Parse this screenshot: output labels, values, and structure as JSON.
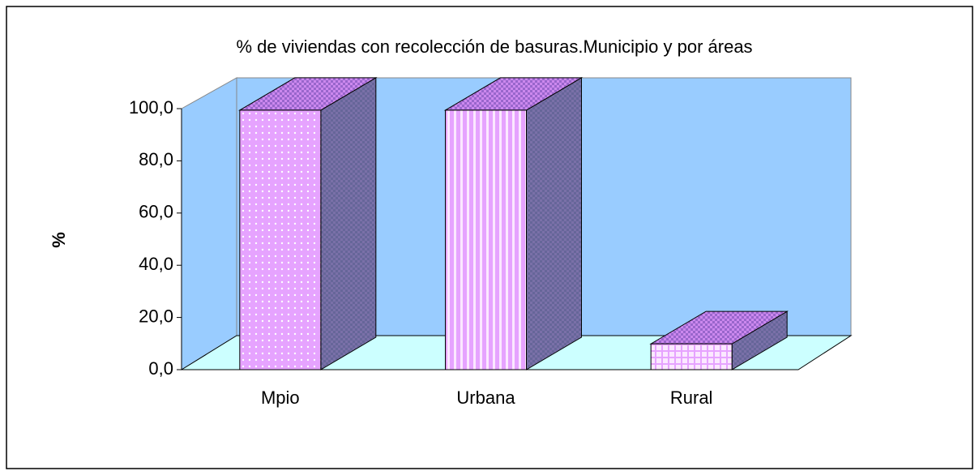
{
  "chart_data": {
    "type": "bar3d",
    "title": "% de viviendas con recolección de basuras.Municipio y por áreas",
    "y_label": "%",
    "categories": [
      "Mpio",
      "Urbana",
      "Rural"
    ],
    "values": [
      99.4,
      99.4,
      9.9
    ],
    "color": "#dd99ff",
    "ylim": [
      0,
      100
    ],
    "yticks": [
      {
        "value": 0,
        "label": "0,0"
      },
      {
        "value": 20,
        "label": "20,0"
      },
      {
        "value": 40,
        "label": "40,0"
      },
      {
        "value": 60,
        "label": "60,0"
      },
      {
        "value": 80,
        "label": "80,0"
      },
      {
        "value": 100,
        "label": "100,0"
      }
    ],
    "grid": false
  }
}
